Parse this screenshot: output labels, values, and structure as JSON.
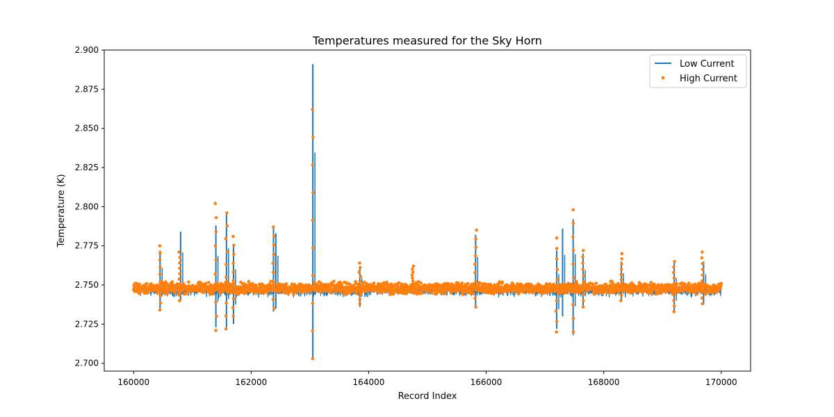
{
  "chart_data": {
    "type": "line",
    "title": "Temperatures measured for the Sky Horn",
    "xlabel": "Record Index",
    "ylabel": "Temperature (K)",
    "xlim": [
      159500,
      170500
    ],
    "ylim": [
      2.695,
      2.9
    ],
    "x_ticks": [
      160000,
      162000,
      164000,
      166000,
      168000,
      170000
    ],
    "x_tick_labels": [
      "160000",
      "162000",
      "164000",
      "166000",
      "168000",
      "170000"
    ],
    "y_ticks": [
      2.7,
      2.725,
      2.75,
      2.775,
      2.8,
      2.825,
      2.85,
      2.875,
      2.9
    ],
    "y_tick_labels": [
      "2.700",
      "2.725",
      "2.750",
      "2.775",
      "2.800",
      "2.825",
      "2.850",
      "2.875",
      "2.900"
    ],
    "grid": false,
    "legend_position": "top-right",
    "x_range": [
      160000,
      170000
    ],
    "series": [
      {
        "name": "Low Current",
        "kind": "line",
        "color": "#1f77b4",
        "baseline": 2.746,
        "spikes": [
          {
            "x": 160450,
            "min": 2.735,
            "max": 2.772
          },
          {
            "x": 160800,
            "min": 2.74,
            "max": 2.784
          },
          {
            "x": 161400,
            "min": 2.723,
            "max": 2.788
          },
          {
            "x": 161580,
            "min": 2.723,
            "max": 2.795
          },
          {
            "x": 161700,
            "min": 2.725,
            "max": 2.775
          },
          {
            "x": 162380,
            "min": 2.733,
            "max": 2.786
          },
          {
            "x": 162420,
            "min": 2.735,
            "max": 2.783
          },
          {
            "x": 163050,
            "min": 2.703,
            "max": 2.891
          },
          {
            "x": 163850,
            "min": 2.736,
            "max": 2.762
          },
          {
            "x": 165820,
            "min": 2.735,
            "max": 2.782
          },
          {
            "x": 167200,
            "min": 2.722,
            "max": 2.772
          },
          {
            "x": 167300,
            "min": 2.73,
            "max": 2.786
          },
          {
            "x": 167480,
            "min": 2.718,
            "max": 2.792
          },
          {
            "x": 167650,
            "min": 2.735,
            "max": 2.77
          },
          {
            "x": 168300,
            "min": 2.74,
            "max": 2.765
          },
          {
            "x": 169200,
            "min": 2.732,
            "max": 2.764
          },
          {
            "x": 169700,
            "min": 2.738,
            "max": 2.765
          }
        ]
      },
      {
        "name": "High Current",
        "kind": "scatter",
        "color": "#ff7f0e",
        "baseline": 2.748,
        "spikes": [
          {
            "x": 160450,
            "min": 2.734,
            "max": 2.775
          },
          {
            "x": 160780,
            "min": 2.74,
            "max": 2.771
          },
          {
            "x": 161400,
            "min": 2.721,
            "max": 2.802
          },
          {
            "x": 161580,
            "min": 2.722,
            "max": 2.796
          },
          {
            "x": 161700,
            "min": 2.73,
            "max": 2.781
          },
          {
            "x": 162380,
            "min": 2.735,
            "max": 2.787
          },
          {
            "x": 163050,
            "min": 2.703,
            "max": 2.862
          },
          {
            "x": 163850,
            "min": 2.738,
            "max": 2.764
          },
          {
            "x": 164750,
            "min": 2.745,
            "max": 2.762
          },
          {
            "x": 165820,
            "min": 2.736,
            "max": 2.785
          },
          {
            "x": 167200,
            "min": 2.72,
            "max": 2.78
          },
          {
            "x": 167480,
            "min": 2.72,
            "max": 2.798
          },
          {
            "x": 167650,
            "min": 2.736,
            "max": 2.772
          },
          {
            "x": 168300,
            "min": 2.74,
            "max": 2.77
          },
          {
            "x": 169200,
            "min": 2.733,
            "max": 2.765
          },
          {
            "x": 169680,
            "min": 2.738,
            "max": 2.771
          }
        ]
      }
    ]
  }
}
